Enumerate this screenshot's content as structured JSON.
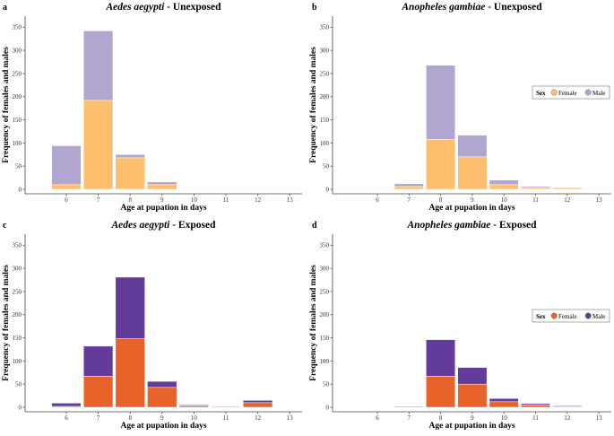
{
  "chart_data": [
    {
      "type": "bar",
      "stacked": true,
      "panel": "a",
      "title_species": "Aedes aegypti",
      "title_suffix": " - Unexposed",
      "xlabel": "Age at pupation in days",
      "ylabel": "Frequency of females and males",
      "categories": [
        "6",
        "7",
        "8",
        "9",
        "10",
        "11",
        "12",
        "13"
      ],
      "series": [
        {
          "name": "Female",
          "color": "#FDBE6E",
          "values": [
            10,
            192,
            68,
            10,
            0,
            0,
            0,
            0
          ]
        },
        {
          "name": "Male",
          "color": "#B1A6D0",
          "values": [
            84,
            150,
            7,
            6,
            0,
            0,
            0,
            0
          ]
        }
      ],
      "ylim": [
        0,
        370
      ],
      "yticks": [
        0,
        50,
        100,
        150,
        200,
        250,
        300,
        350
      ],
      "legend": null
    },
    {
      "type": "bar",
      "stacked": true,
      "panel": "b",
      "title_species": "Anopheles gambiae",
      "title_suffix": " - Unexposed",
      "xlabel": "Age at pupation in days",
      "ylabel": "Frequency of females and males",
      "categories": [
        "6",
        "7",
        "8",
        "9",
        "10",
        "11",
        "12",
        "13"
      ],
      "series": [
        {
          "name": "Female",
          "color": "#FDBE6E",
          "values": [
            0,
            6,
            108,
            70,
            10,
            3,
            3,
            0
          ]
        },
        {
          "name": "Male",
          "color": "#B1A6D0",
          "values": [
            0,
            6,
            160,
            47,
            10,
            3,
            1,
            0
          ]
        }
      ],
      "ylim": [
        0,
        370
      ],
      "yticks": [
        0,
        50,
        100,
        150,
        200,
        250,
        300,
        350
      ],
      "legend": {
        "title": "Sex",
        "entries": [
          "Female",
          "Male"
        ],
        "placement": "right"
      }
    },
    {
      "type": "bar",
      "stacked": true,
      "panel": "c",
      "title_species": "Aedes aegypti",
      "title_suffix": " - Exposed",
      "xlabel": "Age at pupation in days",
      "ylabel": "Frequency of females and males",
      "categories": [
        "6",
        "7",
        "8",
        "9",
        "10",
        "11",
        "12",
        "13"
      ],
      "series": [
        {
          "name": "Female",
          "color": "#E8632A",
          "values": [
            2,
            67,
            148,
            43,
            3,
            1,
            10,
            0
          ]
        },
        {
          "name": "Male",
          "color": "#633B9A",
          "values": [
            7,
            65,
            133,
            13,
            2,
            0,
            5,
            0
          ]
        }
      ],
      "ylim": [
        0,
        370
      ],
      "yticks": [
        0,
        50,
        100,
        150,
        200,
        250,
        300,
        350
      ],
      "legend": null
    },
    {
      "type": "bar",
      "stacked": true,
      "panel": "d",
      "title_species": "Anopheles gambiae",
      "title_suffix": " - Exposed",
      "xlabel": "Age at pupation in days",
      "ylabel": "Frequency of females and males",
      "categories": [
        "6",
        "7",
        "8",
        "9",
        "10",
        "11",
        "12",
        "13"
      ],
      "series": [
        {
          "name": "Female",
          "color": "#E8632A",
          "values": [
            0,
            1,
            67,
            50,
            12,
            5,
            2,
            0
          ]
        },
        {
          "name": "Male",
          "color": "#633B9A",
          "values": [
            0,
            1,
            79,
            36,
            7,
            3,
            1,
            0
          ]
        }
      ],
      "ylim": [
        0,
        370
      ],
      "yticks": [
        0,
        50,
        100,
        150,
        200,
        250,
        300,
        350
      ],
      "legend": {
        "title": "Sex",
        "entries": [
          "Female",
          "Male"
        ],
        "placement": "right"
      }
    }
  ]
}
